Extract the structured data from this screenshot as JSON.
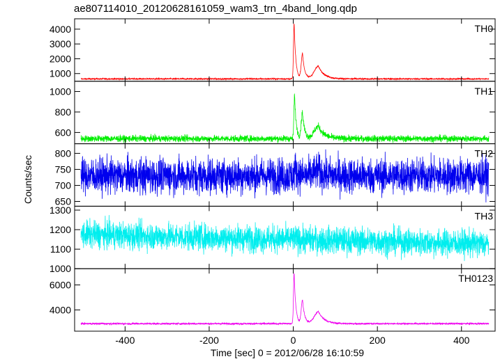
{
  "chart_data": {
    "type": "line",
    "title": "ae807114010_20120628161059_wam3_trn_4band_long.qdp",
    "xlabel": "Time [sec] 0 = 2012/06/28 16:10:59",
    "ylabel": "Counts/sec",
    "xlim": [
      -520,
      480
    ],
    "x_ticks": [
      -400,
      -200,
      0,
      200,
      400
    ],
    "time_range": [
      -505,
      465
    ],
    "panels": [
      {
        "name": "TH0",
        "color": "#ff0000",
        "ylim": [
          480,
          4700
        ],
        "y_ticks": [
          1000,
          2000,
          3000,
          4000
        ],
        "baseline": 640,
        "noise": 25,
        "peaks": [
          {
            "t": 2,
            "height": 3750,
            "rise": 1.5,
            "decay": 4
          },
          {
            "t": 22,
            "height": 1700,
            "rise": 3,
            "decay": 5
          },
          {
            "t": 60,
            "height": 850,
            "rise": 10,
            "decay": 14
          }
        ]
      },
      {
        "name": "TH1",
        "color": "#00ee00",
        "ylim": [
          490,
          1100
        ],
        "y_ticks": [
          600,
          800,
          1000
        ],
        "baseline": 540,
        "noise": 16,
        "peaks": [
          {
            "t": 3,
            "height": 430,
            "rise": 1.5,
            "decay": 4
          },
          {
            "t": 22,
            "height": 250,
            "rise": 3,
            "decay": 5
          },
          {
            "t": 60,
            "height": 120,
            "rise": 10,
            "decay": 14
          }
        ]
      },
      {
        "name": "TH2",
        "color": "#0000ee",
        "ylim": [
          635,
          830
        ],
        "y_ticks": [
          650,
          700,
          750,
          800
        ],
        "baseline": 730,
        "noise": 28,
        "peaks": [
          {
            "t": 5,
            "height": 20,
            "rise": 2,
            "decay": 6
          },
          {
            "t": 60,
            "height": 15,
            "rise": 10,
            "decay": 14
          }
        ]
      },
      {
        "name": "TH3",
        "color": "#00eeee",
        "ylim": [
          1000,
          1320
        ],
        "y_ticks": [
          1000,
          1100,
          1200,
          1300
        ],
        "baseline": 1150,
        "noise": 35,
        "peaks": [],
        "trend": -0.05
      },
      {
        "name": "TH0123",
        "color": "#ee00ee",
        "ylim": [
          2300,
          7300
        ],
        "y_ticks": [
          4000,
          6000
        ],
        "baseline": 2900,
        "noise": 35,
        "peaks": [
          {
            "t": 2,
            "height": 4100,
            "rise": 1.5,
            "decay": 4
          },
          {
            "t": 22,
            "height": 1900,
            "rise": 3,
            "decay": 5
          },
          {
            "t": 60,
            "height": 950,
            "rise": 10,
            "decay": 14
          }
        ]
      }
    ]
  }
}
